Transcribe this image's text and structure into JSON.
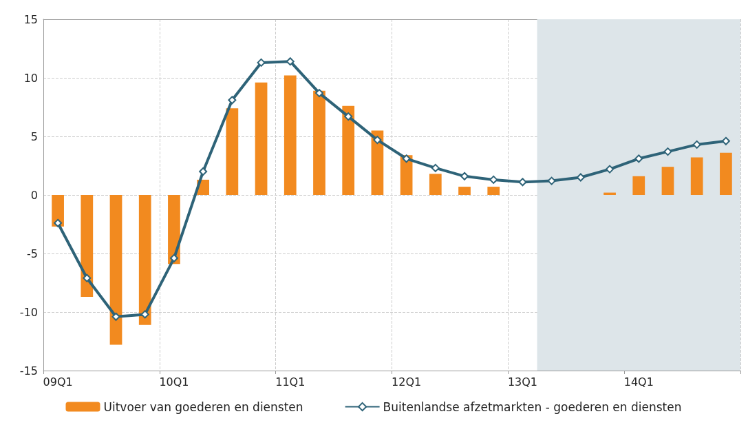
{
  "chart_data": {
    "type": "bar",
    "categories": [
      "09Q1",
      null,
      null,
      null,
      "10Q1",
      null,
      null,
      null,
      "11Q1",
      null,
      null,
      null,
      "12Q1",
      null,
      null,
      null,
      "13Q1",
      null,
      null,
      null,
      "14Q1",
      null,
      null,
      null
    ],
    "series": [
      {
        "name": "Uitvoer van goederen en diensten",
        "color": "#f28a1f",
        "values": [
          -2.7,
          -8.7,
          -12.8,
          -11.1,
          -5.9,
          1.3,
          7.4,
          9.6,
          10.2,
          8.9,
          7.6,
          5.5,
          3.4,
          1.8,
          0.7,
          0.7,
          0,
          0,
          0,
          0.2,
          1.6,
          2.4,
          3.2,
          3.6
        ]
      },
      {
        "name": "Buitenlandse afzetmarkten - goederen en diensten",
        "type": "line",
        "color": "#2e6378",
        "marker": "diamond",
        "values": [
          -2.4,
          -7.1,
          -10.4,
          -10.2,
          -5.4,
          2.0,
          8.1,
          11.3,
          11.4,
          8.7,
          6.7,
          4.7,
          3.1,
          2.3,
          1.6,
          1.3,
          1.1,
          1.2,
          1.5,
          2.2,
          3.1,
          3.7,
          4.3,
          4.6
        ]
      }
    ],
    "ylim": [
      -15,
      15
    ],
    "yticks": [
      -15,
      -10,
      -5,
      0,
      5,
      10,
      15
    ],
    "grid": true,
    "legend": "bottom"
  }
}
